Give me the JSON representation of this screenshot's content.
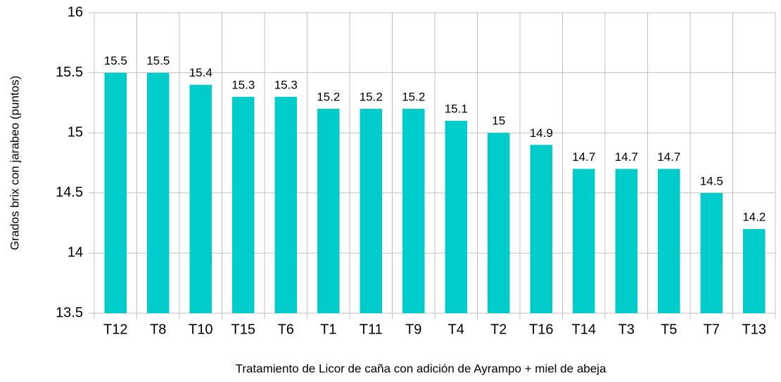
{
  "chart_data": {
    "type": "bar",
    "x_label": "Tratamiento de Licor de caña con adición de Ayrampo + miel de abeja",
    "y_label": "Grados brix con jarabeo (puntos)",
    "categories": [
      "T12",
      "T8",
      "T10",
      "T15",
      "T6",
      "T1",
      "T11",
      "T9",
      "T4",
      "T2",
      "T16",
      "T14",
      "T3",
      "T5",
      "T7",
      "T13"
    ],
    "values": [
      15.5,
      15.5,
      15.4,
      15.3,
      15.3,
      15.2,
      15.2,
      15.2,
      15.1,
      15,
      14.9,
      14.7,
      14.7,
      14.7,
      14.5,
      14.2
    ],
    "color": "#00cccc",
    "ylim": [
      13.5,
      16
    ],
    "yticks": [
      13.5,
      14,
      14.5,
      15,
      15.5,
      16
    ],
    "grid": true
  }
}
